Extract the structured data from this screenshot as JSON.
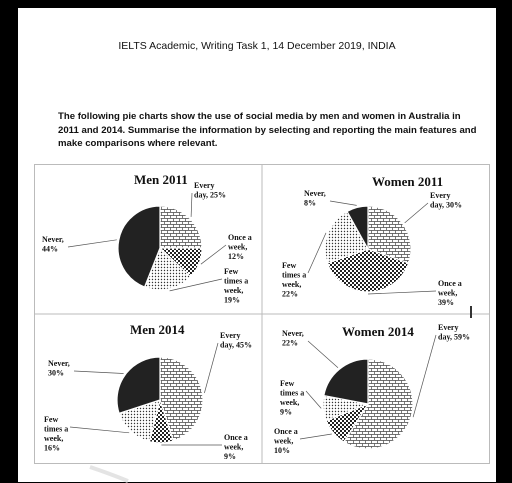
{
  "heading": "IELTS Academic, Writing Task 1, 14 December 2019, INDIA",
  "prompt": "The following pie charts show the use of social media by men and women in Australia in 2011 and 2014. Summarise the information by selecting and reporting the main features and make comparisons where relevant.",
  "colors": {
    "every_day": "bricks-pattern",
    "once_a_week": "checker-pattern",
    "few_times_a_week": "dots-pattern",
    "never": "#222222"
  },
  "chart_data": [
    {
      "type": "pie",
      "title": "Men 2011",
      "categories": [
        "Every day",
        "Once a week",
        "Few times a week",
        "Never"
      ],
      "values": [
        25,
        12,
        19,
        44
      ],
      "labels": [
        [
          "Every",
          "day, 25%"
        ],
        [
          "Once a",
          "week,",
          "12%"
        ],
        [
          "Few",
          "times a",
          "week,",
          "19%"
        ],
        [
          "Never,",
          "44%"
        ]
      ]
    },
    {
      "type": "pie",
      "title": "Women 2011",
      "categories": [
        "Every day",
        "Once a week",
        "Few times a week",
        "Never"
      ],
      "values": [
        30,
        39,
        22,
        8
      ],
      "labels": [
        [
          "Every",
          "day, 30%"
        ],
        [
          "Once a",
          "week,",
          "39%"
        ],
        [
          "Few",
          "times a",
          "week,",
          "22%"
        ],
        [
          "Never,",
          "8%"
        ]
      ]
    },
    {
      "type": "pie",
      "title": "Men 2014",
      "categories": [
        "Every day",
        "Once a week",
        "Few times a week",
        "Never"
      ],
      "values": [
        45,
        9,
        16,
        30
      ],
      "labels": [
        [
          "Every",
          "day, 45%"
        ],
        [
          "Once a",
          "week,",
          "9%"
        ],
        [
          "Few",
          "times a",
          "week,",
          "16%"
        ],
        [
          "Never,",
          "30%"
        ]
      ]
    },
    {
      "type": "pie",
      "title": "Women 2014",
      "categories": [
        "Every day",
        "Once a week",
        "Few times a week",
        "Never"
      ],
      "values": [
        59,
        10,
        9,
        22
      ],
      "labels": [
        [
          "Every",
          "day, 59%"
        ],
        [
          "Once a",
          "week,",
          "10%"
        ],
        [
          "Few",
          "times a",
          "week,",
          "9%"
        ],
        [
          "Never,",
          "22%"
        ]
      ]
    }
  ]
}
